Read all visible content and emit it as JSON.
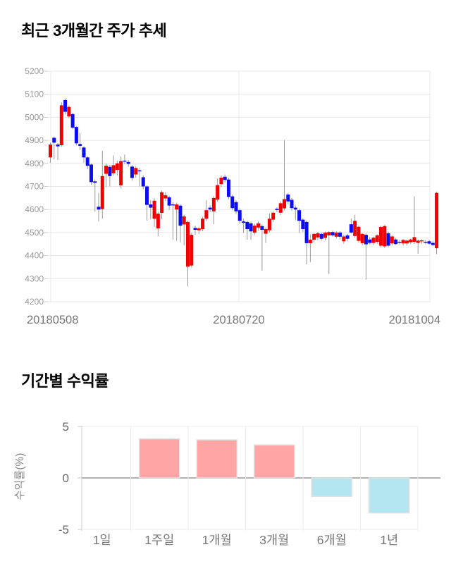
{
  "chart_data": [
    {
      "type": "candlestick",
      "title": "최근 3개월간 주가 추세",
      "x_tick_labels": [
        "20180508",
        "20180720",
        "20181004"
      ],
      "y_ticks": [
        5200,
        5100,
        5000,
        4900,
        4800,
        4700,
        4600,
        4500,
        4400,
        4300,
        4200
      ],
      "ylim": [
        4200,
        5200
      ],
      "grid": true,
      "legend": "none",
      "colors": {
        "up": "#f20000",
        "down": "#0d0df2",
        "wick": "#999999",
        "grid": "#e7e7e7",
        "axis_tick": "#cccccc",
        "y_tick_label": "#999999",
        "x_tick_label": "#777777"
      },
      "candles_format": [
        "open",
        "high",
        "low",
        "close"
      ],
      "candles": [
        [
          4826,
          4890,
          4803,
          4882
        ],
        [
          4911,
          4916,
          4817,
          4890
        ],
        [
          4882,
          4888,
          4815,
          4874
        ],
        [
          4879,
          5065,
          4872,
          5052
        ],
        [
          5075,
          5082,
          5012,
          5024
        ],
        [
          5004,
          5052,
          4996,
          5045
        ],
        [
          5014,
          5020,
          4948,
          4955
        ],
        [
          4958,
          4962,
          4878,
          4887
        ],
        [
          4884,
          4932,
          4858,
          4876
        ],
        [
          4869,
          4875,
          4803,
          4826
        ],
        [
          4826,
          4832,
          4775,
          4790
        ],
        [
          4795,
          4800,
          4708,
          4719
        ],
        [
          4722,
          4730,
          4590,
          4716
        ],
        [
          4612,
          4672,
          4548,
          4600
        ],
        [
          4602,
          4855,
          4560,
          4745
        ],
        [
          4755,
          4800,
          4698,
          4790
        ],
        [
          4785,
          4793,
          4700,
          4745
        ],
        [
          4757,
          4835,
          4748,
          4792
        ],
        [
          4772,
          4812,
          4748,
          4800
        ],
        [
          4705,
          4830,
          4692,
          4810
        ],
        [
          4812,
          4838,
          4796,
          4808
        ],
        [
          4806,
          4815,
          4786,
          4798
        ],
        [
          4786,
          4792,
          4725,
          4737
        ],
        [
          4752,
          4788,
          4738,
          4780
        ],
        [
          4770,
          4780,
          4700,
          4768
        ],
        [
          4740,
          4748,
          4688,
          4700
        ],
        [
          4700,
          4705,
          4552,
          4620
        ],
        [
          4622,
          4640,
          4558,
          4608
        ],
        [
          4560,
          4648,
          4524,
          4638
        ],
        [
          4518,
          4590,
          4484,
          4582
        ],
        [
          4585,
          4682,
          4558,
          4675
        ],
        [
          4648,
          4675,
          4636,
          4662
        ],
        [
          4653,
          4660,
          4598,
          4617
        ],
        [
          4622,
          4632,
          4469,
          4618
        ],
        [
          4600,
          4630,
          4464,
          4622
        ],
        [
          4617,
          4622,
          4458,
          4530
        ],
        [
          4535,
          4578,
          4444,
          4570
        ],
        [
          4352,
          4552,
          4267,
          4546
        ],
        [
          4357,
          4498,
          4348,
          4490
        ],
        [
          4520,
          4530,
          4490,
          4512
        ],
        [
          4510,
          4524,
          4494,
          4518
        ],
        [
          4515,
          4568,
          4506,
          4560
        ],
        [
          4560,
          4640,
          4550,
          4597
        ],
        [
          4608,
          4618,
          4588,
          4600
        ],
        [
          4592,
          4658,
          4536,
          4650
        ],
        [
          4643,
          4735,
          4634,
          4706
        ],
        [
          4710,
          4748,
          4698,
          4738
        ],
        [
          4742,
          4752,
          4716,
          4728
        ],
        [
          4730,
          4738,
          4644,
          4655
        ],
        [
          4657,
          4665,
          4596,
          4606
        ],
        [
          4632,
          4640,
          4580,
          4592
        ],
        [
          4597,
          4605,
          4538,
          4551
        ],
        [
          4548,
          4560,
          4498,
          4542
        ],
        [
          4546,
          4552,
          4469,
          4515
        ],
        [
          4540,
          4548,
          4468,
          4505
        ],
        [
          4500,
          4538,
          4490,
          4530
        ],
        [
          4522,
          4548,
          4508,
          4540
        ],
        [
          4528,
          4535,
          4335,
          4512
        ],
        [
          4495,
          4522,
          4455,
          4515
        ],
        [
          4510,
          4582,
          4500,
          4560
        ],
        [
          4556,
          4592,
          4546,
          4586
        ],
        [
          4603,
          4610,
          4588,
          4598
        ],
        [
          4586,
          4635,
          4576,
          4627
        ],
        [
          4605,
          4900,
          4596,
          4645
        ],
        [
          4665,
          4672,
          4622,
          4635
        ],
        [
          4642,
          4650,
          4594,
          4606
        ],
        [
          4608,
          4618,
          4556,
          4600
        ],
        [
          4597,
          4605,
          4498,
          4551
        ],
        [
          4556,
          4562,
          4502,
          4515
        ],
        [
          4546,
          4552,
          4362,
          4454
        ],
        [
          4454,
          4492,
          4372,
          4469
        ],
        [
          4469,
          4498,
          4458,
          4494
        ],
        [
          4479,
          4502,
          4468,
          4497
        ],
        [
          4494,
          4500,
          4465,
          4473
        ],
        [
          4477,
          4504,
          4466,
          4500
        ],
        [
          4488,
          4506,
          4320,
          4502
        ],
        [
          4502,
          4508,
          4482,
          4488
        ],
        [
          4482,
          4506,
          4474,
          4500
        ],
        [
          4500,
          4506,
          4470,
          4482
        ],
        [
          4462,
          4490,
          4452,
          4483
        ],
        [
          4488,
          4495,
          4462,
          4473
        ],
        [
          4536,
          4561,
          4496,
          4500
        ],
        [
          4485,
          4577,
          4478,
          4551
        ],
        [
          4464,
          4530,
          4456,
          4525
        ],
        [
          4454,
          4498,
          4446,
          4494
        ],
        [
          4490,
          4496,
          4296,
          4449
        ],
        [
          4470,
          4481,
          4448,
          4455
        ],
        [
          4455,
          4482,
          4446,
          4478
        ],
        [
          4460,
          4492,
          4450,
          4488
        ],
        [
          4443,
          4530,
          4436,
          4524
        ],
        [
          4440,
          4534,
          4432,
          4528
        ],
        [
          4497,
          4505,
          4436,
          4443
        ],
        [
          4453,
          4488,
          4444,
          4483
        ],
        [
          4470,
          4476,
          4446,
          4450
        ],
        [
          4460,
          4468,
          4448,
          4458
        ],
        [
          4453,
          4472,
          4444,
          4468
        ],
        [
          4453,
          4470,
          4444,
          4465
        ],
        [
          4458,
          4474,
          4450,
          4470
        ],
        [
          4460,
          4657,
          4450,
          4480
        ],
        [
          4455,
          4470,
          4408,
          4465
        ],
        [
          4462,
          4470,
          4452,
          4466
        ],
        [
          4460,
          4468,
          4450,
          4456
        ],
        [
          4462,
          4468,
          4448,
          4452
        ],
        [
          4455,
          4464,
          4440,
          4446
        ],
        [
          4432,
          4678,
          4406,
          4672
        ]
      ]
    },
    {
      "type": "bar",
      "title": "기간별 수익률",
      "ylabel": "수익률(%)",
      "categories": [
        "1일",
        "1주일",
        "1개월",
        "3개월",
        "6개월",
        "1년"
      ],
      "values": [
        0,
        3.8,
        3.7,
        3.2,
        -1.8,
        -3.4
      ],
      "y_ticks": [
        5,
        0,
        -5
      ],
      "ylim": [
        -5,
        5
      ],
      "grid": true,
      "legend": "none",
      "colors": {
        "positive_bar": "#ffa5a5",
        "negative_bar": "#b3e6f1",
        "bar_border": "#e0e0e0",
        "zero_line": "#b3b3b3",
        "grid": "#ededed",
        "axis_line": "#cccccc",
        "y_tick_label": "#666666",
        "category_label": "#777777",
        "ylabel_color": "#888888"
      }
    }
  ]
}
